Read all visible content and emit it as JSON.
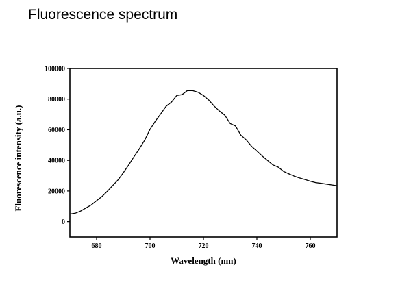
{
  "page": {
    "title": "Fluorescence spectrum"
  },
  "chart_data": {
    "type": "line",
    "title": "",
    "xlabel": "Wavelength (nm)",
    "ylabel": "Fluorescence intensity (a.u.)",
    "xlim": [
      670,
      770
    ],
    "ylim": [
      -10000,
      100000
    ],
    "x_ticks": [
      680,
      700,
      720,
      740,
      760
    ],
    "x_tick_labels": [
      "680",
      "700",
      "720",
      "740",
      "760"
    ],
    "y_ticks": [
      0,
      20000,
      40000,
      60000,
      80000,
      100000
    ],
    "y_tick_labels": [
      "0",
      "20000",
      "40000",
      "60000",
      "80000",
      "100000"
    ],
    "grid": false,
    "legend": "none",
    "series": [
      {
        "color": "#000000",
        "x": [
          670,
          672,
          674,
          676,
          678,
          680,
          682,
          684,
          686,
          688,
          690,
          692,
          694,
          696,
          698,
          700,
          702,
          704,
          706,
          708,
          710,
          712,
          714,
          716,
          718,
          720,
          722,
          724,
          726,
          728,
          730,
          732,
          734,
          736,
          738,
          740,
          742,
          744,
          746,
          748,
          750,
          752,
          754,
          756,
          758,
          760,
          762,
          764,
          766,
          768,
          770
        ],
        "y": [
          5000,
          5500,
          6900,
          8900,
          10900,
          13700,
          16400,
          19800,
          23500,
          27200,
          31900,
          37000,
          42400,
          47600,
          53200,
          60300,
          65600,
          70400,
          75300,
          78000,
          82400,
          82900,
          85600,
          85500,
          84500,
          82400,
          79400,
          75500,
          72200,
          69500,
          64100,
          62500,
          56500,
          53400,
          49200,
          46100,
          42900,
          40000,
          37100,
          35600,
          32800,
          31200,
          29700,
          28500,
          27500,
          26400,
          25500,
          25000,
          24500,
          24000,
          23500
        ]
      }
    ]
  }
}
